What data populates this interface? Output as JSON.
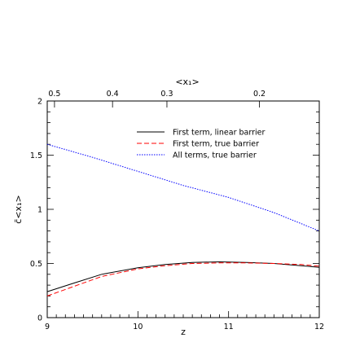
{
  "chart_data": {
    "type": "line",
    "xlabel": "z",
    "ylabel": "c̄<x₁>",
    "top_axis_label": "<x₁>",
    "xlim": [
      9,
      12
    ],
    "ylim": [
      0,
      2
    ],
    "x_ticks": [
      "9",
      "10",
      "11",
      "12"
    ],
    "y_ticks": [
      "0",
      "0.5",
      "1",
      "1.5",
      "2"
    ],
    "top_ticks": [
      {
        "label": "0.5",
        "z": 9.08
      },
      {
        "label": "0.4",
        "z": 9.72
      },
      {
        "label": "0.3",
        "z": 10.32
      },
      {
        "label": "0.2",
        "z": 11.34
      }
    ],
    "legend_position": "upper-right",
    "series": [
      {
        "name": "First term, linear barrier",
        "color": "#000000",
        "dash": "solid",
        "points": [
          [
            9.0,
            0.24
          ],
          [
            9.3,
            0.32
          ],
          [
            9.6,
            0.4
          ],
          [
            10.0,
            0.46
          ],
          [
            10.3,
            0.49
          ],
          [
            10.6,
            0.51
          ],
          [
            10.9,
            0.515
          ],
          [
            11.2,
            0.51
          ],
          [
            11.5,
            0.5
          ],
          [
            11.8,
            0.48
          ],
          [
            12.0,
            0.465
          ]
        ]
      },
      {
        "name": "First term, true barrier",
        "color": "#ff0000",
        "dash": "dashed",
        "points": [
          [
            9.0,
            0.2
          ],
          [
            9.3,
            0.29
          ],
          [
            9.6,
            0.38
          ],
          [
            10.0,
            0.45
          ],
          [
            10.3,
            0.48
          ],
          [
            10.6,
            0.5
          ],
          [
            10.9,
            0.505
          ],
          [
            11.2,
            0.505
          ],
          [
            11.5,
            0.5
          ],
          [
            11.8,
            0.49
          ],
          [
            12.0,
            0.475
          ]
        ]
      },
      {
        "name": "All terms, true barrier",
        "color": "#0000ff",
        "dash": "dotted",
        "points": [
          [
            9.0,
            1.6
          ],
          [
            9.5,
            1.48
          ],
          [
            10.0,
            1.35
          ],
          [
            10.5,
            1.22
          ],
          [
            11.0,
            1.11
          ],
          [
            11.5,
            0.97
          ],
          [
            12.0,
            0.8
          ]
        ]
      }
    ]
  }
}
